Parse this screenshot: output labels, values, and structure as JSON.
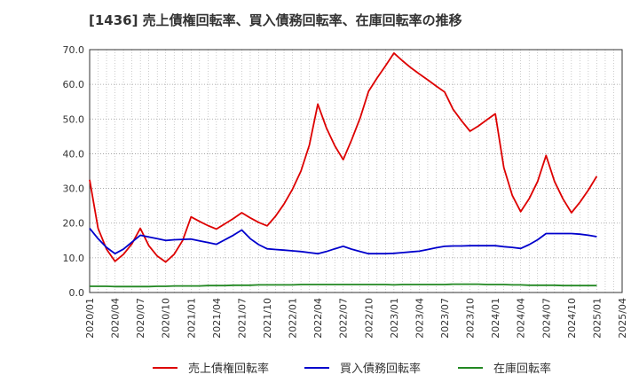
{
  "chart_data": {
    "type": "line",
    "title": "[1436]  売上債権回転率、買入債務回転率、在庫回転率の推移",
    "xlabel": "",
    "ylabel": "",
    "ylim": [
      0,
      70
    ],
    "yticks": [
      "0.0",
      "10.0",
      "20.0",
      "30.0",
      "40.0",
      "50.0",
      "60.0",
      "70.0"
    ],
    "xticks": [
      "2020/01",
      "2020/04",
      "2020/07",
      "2020/10",
      "2021/01",
      "2021/04",
      "2021/07",
      "2021/10",
      "2022/01",
      "2022/04",
      "2022/07",
      "2022/10",
      "2023/01",
      "2023/04",
      "2023/07",
      "2023/10",
      "2024/01",
      "2024/04",
      "2024/07",
      "2024/10",
      "2025/01",
      "2025/04"
    ],
    "grid": true,
    "legend_position": "bottom",
    "x_start": "2020/01",
    "x_end": "2025/04",
    "series": [
      {
        "name": "売上債権回転率",
        "color": "#dd0000",
        "values": [
          32.5,
          18.5,
          12.5,
          9.0,
          11.0,
          14.0,
          18.5,
          13.5,
          10.5,
          8.8,
          11.0,
          15.0,
          21.8,
          20.5,
          19.3,
          18.3,
          19.8,
          21.3,
          23.0,
          21.5,
          20.2,
          19.2,
          22.0,
          25.5,
          29.8,
          35.0,
          42.5,
          54.3,
          47.5,
          42.3,
          38.3,
          44.0,
          50.3,
          58.0,
          61.8,
          65.3,
          69.0,
          66.8,
          64.8,
          63.0,
          61.3,
          59.5,
          57.8,
          52.8,
          49.5,
          46.5,
          48.0,
          49.8,
          51.5,
          36.0,
          28.0,
          23.3,
          27.0,
          32.0,
          39.5,
          32.0,
          27.0,
          23.0,
          26.0,
          29.5,
          33.5
        ]
      },
      {
        "name": "買入債務回転率",
        "color": "#0000cc",
        "values": [
          18.5,
          15.5,
          13.0,
          11.2,
          12.5,
          14.5,
          16.5,
          16.0,
          15.5,
          15.0,
          15.2,
          15.3,
          15.4,
          14.9,
          14.4,
          13.9,
          15.2,
          16.5,
          18.0,
          15.5,
          13.8,
          12.6,
          12.4,
          12.2,
          12.0,
          11.8,
          11.5,
          11.2,
          11.8,
          12.6,
          13.3,
          12.5,
          11.8,
          11.2,
          11.2,
          11.2,
          11.3,
          11.5,
          11.7,
          11.9,
          12.4,
          12.9,
          13.3,
          13.4,
          13.4,
          13.5,
          13.5,
          13.5,
          13.5,
          13.2,
          13.0,
          12.7,
          13.8,
          15.2,
          17.0,
          17.0,
          17.0,
          17.0,
          16.8,
          16.5,
          16.1
        ]
      },
      {
        "name": "在庫回転率",
        "color": "#228822",
        "values": [
          1.8,
          1.8,
          1.8,
          1.7,
          1.7,
          1.7,
          1.7,
          1.7,
          1.8,
          1.8,
          1.9,
          1.9,
          1.9,
          1.9,
          2.0,
          2.0,
          2.0,
          2.1,
          2.1,
          2.1,
          2.2,
          2.2,
          2.2,
          2.2,
          2.2,
          2.3,
          2.3,
          2.3,
          2.3,
          2.3,
          2.3,
          2.3,
          2.3,
          2.3,
          2.3,
          2.3,
          2.2,
          2.3,
          2.3,
          2.3,
          2.3,
          2.3,
          2.3,
          2.4,
          2.4,
          2.4,
          2.4,
          2.3,
          2.3,
          2.3,
          2.2,
          2.2,
          2.1,
          2.1,
          2.1,
          2.1,
          2.0,
          2.0,
          2.0,
          2.0,
          2.0
        ]
      }
    ]
  }
}
